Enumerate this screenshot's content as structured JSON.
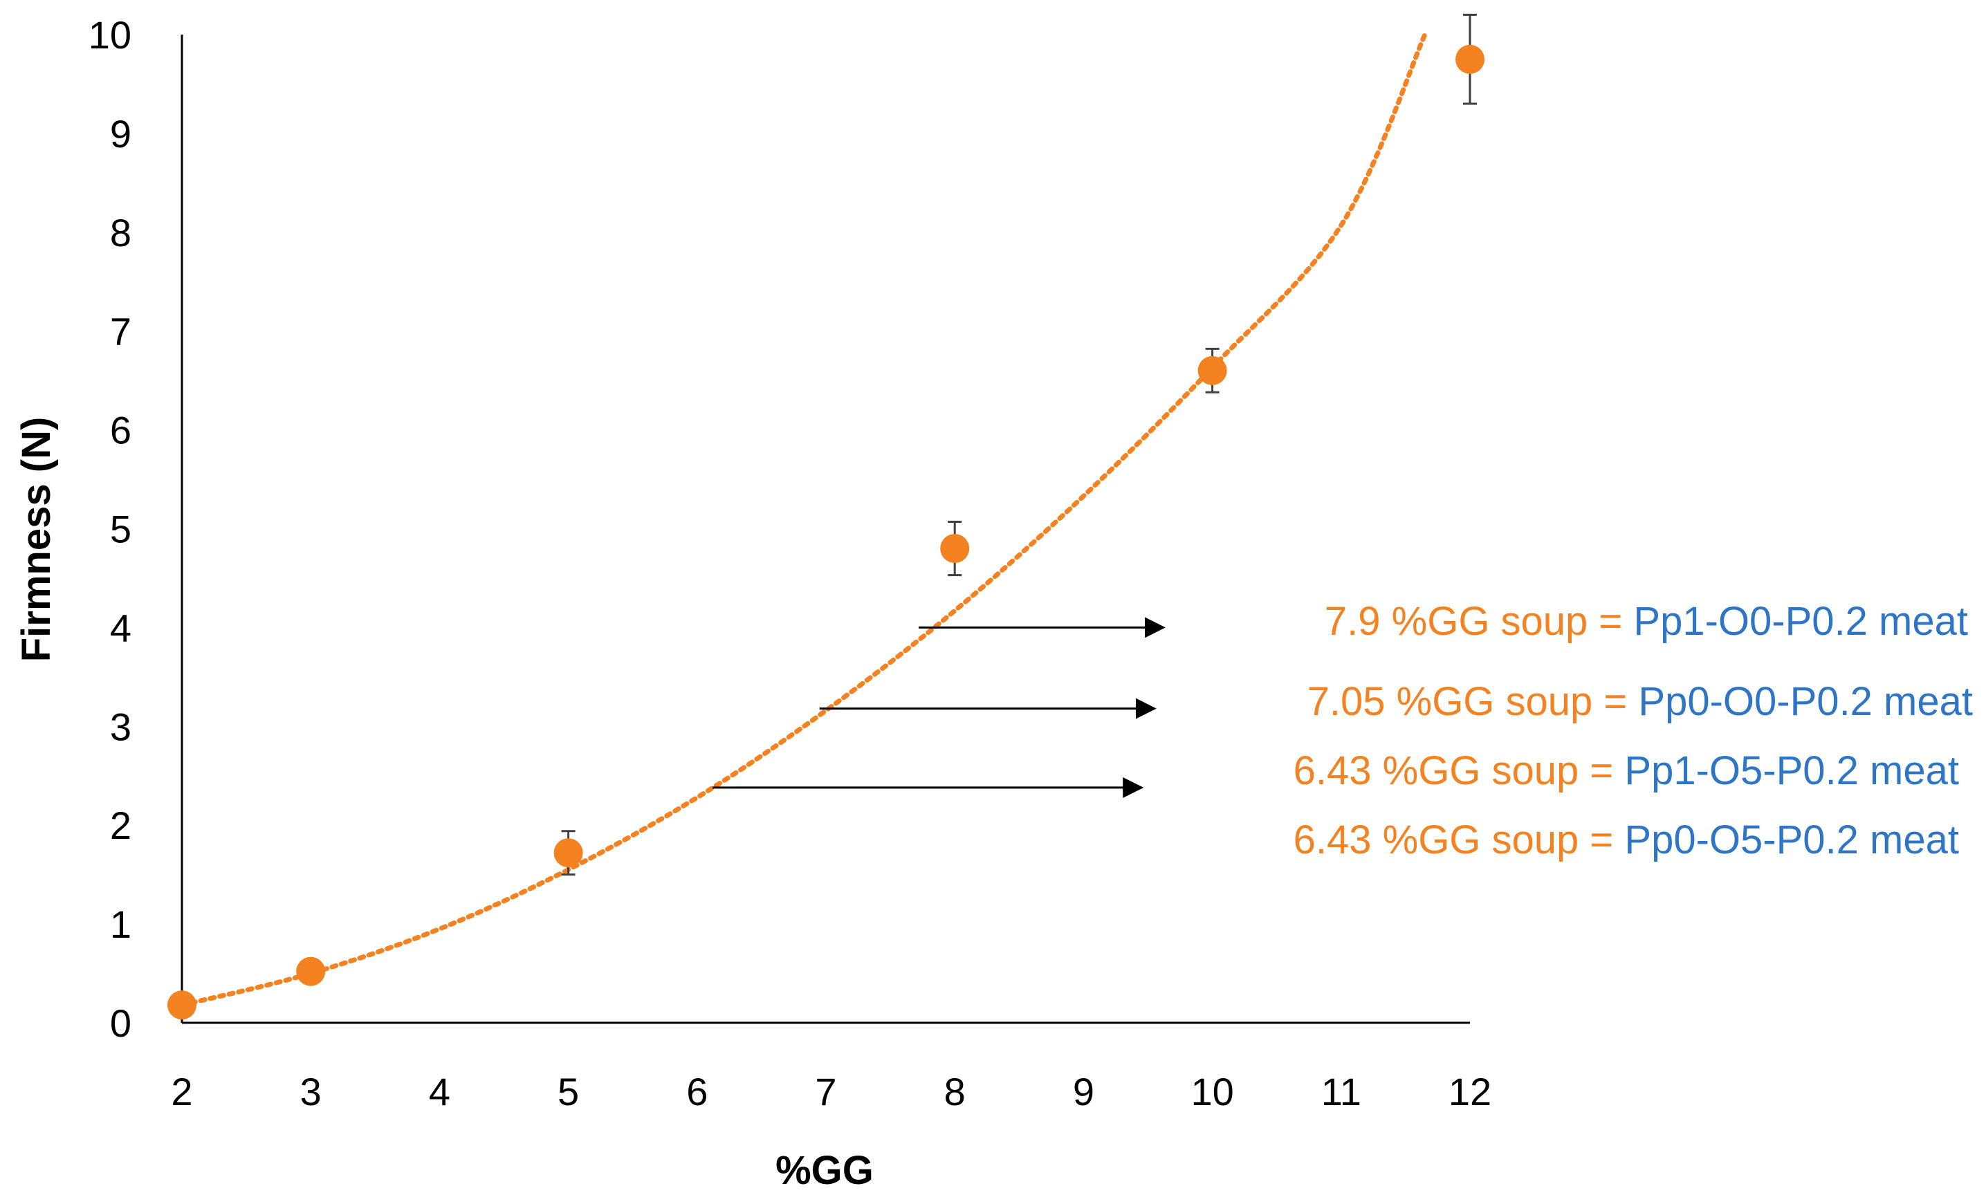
{
  "chart_data": {
    "type": "scatter",
    "xlabel": "%GG",
    "ylabel": "Firmness (N)",
    "xlim": [
      2,
      12
    ],
    "ylim": [
      0,
      10
    ],
    "xticks": [
      2,
      3,
      4,
      5,
      6,
      7,
      8,
      9,
      10,
      11,
      12
    ],
    "yticks": [
      0,
      1,
      2,
      3,
      4,
      5,
      6,
      7,
      8,
      9,
      10
    ],
    "grid": false,
    "marker_color": "#F58220",
    "errorbar_color": "#404040",
    "trendline": {
      "style": "dotted",
      "color": "#F58220",
      "x": [
        2,
        3,
        4,
        5,
        6,
        7,
        8,
        9,
        10,
        11,
        11.65
      ],
      "y": [
        0.18,
        0.5,
        0.95,
        1.55,
        2.28,
        3.16,
        4.17,
        5.33,
        6.63,
        8.07,
        10.0
      ]
    },
    "points": [
      {
        "x": 2,
        "y": 0.18,
        "err": 0
      },
      {
        "x": 3,
        "y": 0.52,
        "err": 0
      },
      {
        "x": 5,
        "y": 1.72,
        "err": 0.22
      },
      {
        "x": 8,
        "y": 4.8,
        "err": 0.27
      },
      {
        "x": 10,
        "y": 6.6,
        "err": 0.22
      },
      {
        "x": 12,
        "y": 9.75,
        "err": 0.45
      }
    ],
    "annotations": [
      {
        "soup": "7.9 %GG soup = ",
        "meat": " Pp1-O0-P0.2 meat",
        "arrow_from": [
          7.72,
          4.0
        ],
        "arrow_to": [
          9.62,
          4.0
        ]
      },
      {
        "soup": "7.05 %GG soup = ",
        "meat": "Pp0-O0-P0.2 meat",
        "arrow_from": [
          6.95,
          3.18
        ],
        "arrow_to": [
          9.55,
          3.18
        ]
      },
      {
        "soup": "6.43 %GG soup = ",
        "meat": "Pp1-O5-P0.2 meat",
        "arrow_from": [
          6.12,
          2.38
        ],
        "arrow_to": [
          9.45,
          2.38
        ]
      },
      {
        "soup": "6.43 %GG soup = ",
        "meat": "Pp0-O5-P0.2 meat"
      }
    ],
    "soup_color": "#F58220",
    "meat_color": "#2E75C6"
  }
}
